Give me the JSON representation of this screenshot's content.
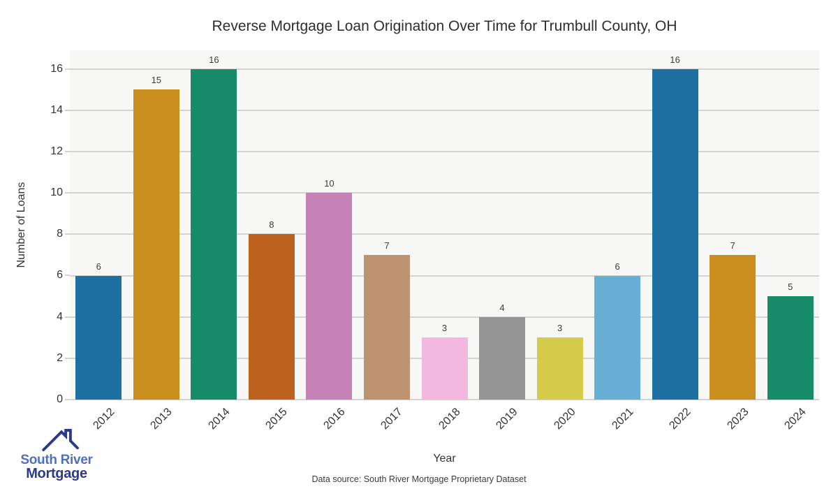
{
  "title": "Reverse Mortgage Loan Origination Over Time for Trumbull County, OH",
  "chart_data": {
    "type": "bar",
    "title": "Reverse Mortgage Loan Origination Over Time for Trumbull County, OH",
    "categories": [
      "2012",
      "2013",
      "2014",
      "2015",
      "2016",
      "2017",
      "2018",
      "2019",
      "2020",
      "2021",
      "2022",
      "2023",
      "2024"
    ],
    "values": [
      6,
      15,
      16,
      8,
      10,
      7,
      3,
      4,
      3,
      6,
      16,
      7,
      5
    ],
    "bar_colors": [
      "#1e6fa2",
      "#c98e1e",
      "#188c68",
      "#bd611e",
      "#c482b6",
      "#bd926e",
      "#f2b8e0",
      "#959595",
      "#d4cc49",
      "#68afd6",
      "#1e6fa2",
      "#c98e1e",
      "#188c68"
    ],
    "xlabel": "Year",
    "ylabel": "Number of Loans",
    "ylim": [
      0,
      16.9
    ],
    "yticks": [
      0,
      2,
      4,
      6,
      8,
      10,
      12,
      14,
      16
    ],
    "grid": true,
    "value_labels": true,
    "plot_background": "#f7f7f6",
    "gridline_color": "#d3d3d3"
  },
  "footer": {
    "data_source": "Data source: South River Mortgage Proprietary Dataset"
  },
  "branding": {
    "line1": "South River",
    "line2": "Mortgage",
    "line1_color": "#4f6fc2",
    "line2_color": "#2c3a88",
    "roof_color": "#2c3a88"
  }
}
